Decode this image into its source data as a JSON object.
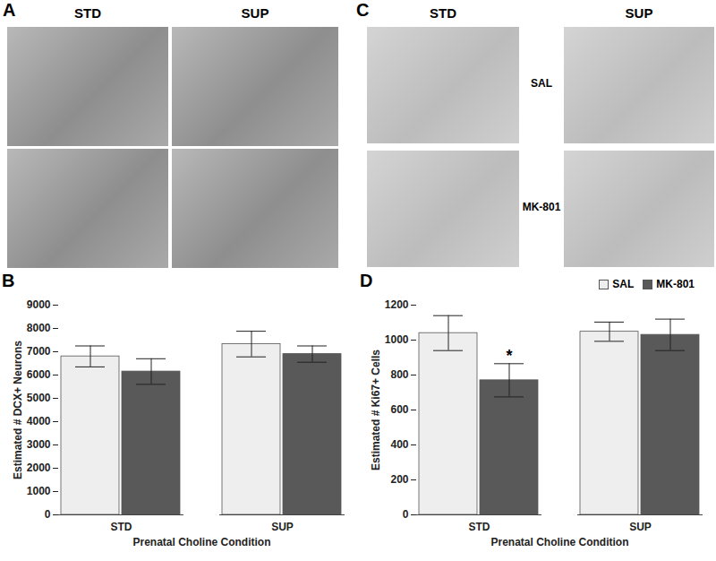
{
  "image_panels": [
    {
      "letter": "A",
      "column_labels": [
        "STD",
        "SUP"
      ]
    },
    {
      "letter": "C",
      "column_labels": [
        "STD",
        "SUP"
      ],
      "row_labels": [
        "SAL",
        "MK-801"
      ]
    }
  ],
  "chart_data": [
    {
      "type": "bar",
      "panel": "B",
      "x_label": "Prenatal Choline Condition",
      "y_label": "Estimated # DCX+ Neurons",
      "categories": [
        "STD",
        "SUP"
      ],
      "series": [
        {
          "name": "SAL",
          "color": "#eeeeee",
          "values": [
            6800,
            7330
          ],
          "errors": [
            450,
            550
          ]
        },
        {
          "name": "MK-801",
          "color": "#595959",
          "values": [
            6150,
            6900
          ],
          "errors": [
            550,
            350
          ]
        }
      ],
      "ylim": [
        0,
        9000
      ],
      "yticks": [
        0,
        1000,
        2000,
        3000,
        4000,
        5000,
        6000,
        7000,
        8000,
        9000
      ]
    },
    {
      "type": "bar",
      "panel": "D",
      "x_label": "Prenatal Choline Condition",
      "y_label": "Estimated # Ki67+ Cells",
      "categories": [
        "STD",
        "SUP"
      ],
      "series": [
        {
          "name": "SAL",
          "color": "#eeeeee",
          "values": [
            1040,
            1048
          ],
          "errors": [
            100,
            55
          ]
        },
        {
          "name": "MK-801",
          "color": "#595959",
          "values": [
            770,
            1030
          ],
          "errors": [
            95,
            90
          ]
        }
      ],
      "annotations": [
        {
          "text": "*",
          "category": "STD",
          "series": "MK-801"
        }
      ],
      "legend": "top-right",
      "ylim": [
        0,
        1200
      ],
      "yticks": [
        0,
        200,
        400,
        600,
        800,
        1000,
        1200
      ]
    }
  ]
}
